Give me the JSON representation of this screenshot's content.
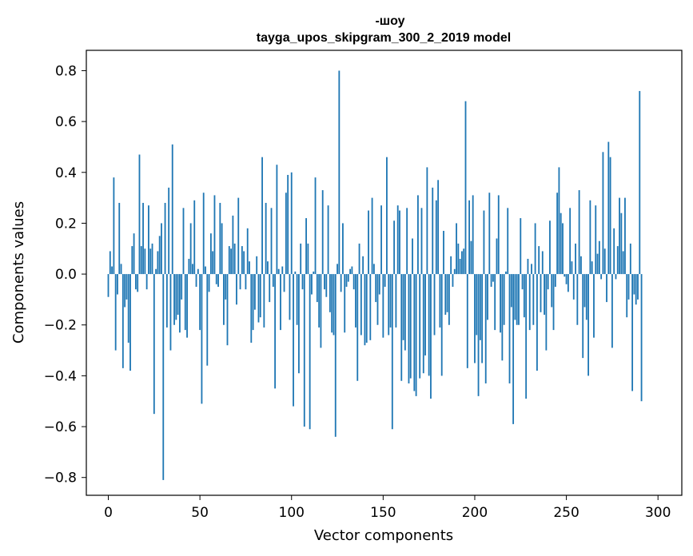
{
  "chart_data": {
    "type": "bar",
    "title": "-шоу",
    "subtitle": "tayga_upos_skipgram_300_2_2019 model",
    "xlabel": "Vector components",
    "ylabel": "Components values",
    "xlim": [
      -12,
      313
    ],
    "ylim": [
      -0.87,
      0.88
    ],
    "xticks": [
      0,
      50,
      100,
      150,
      200,
      250,
      300
    ],
    "xtick_labels": [
      "0",
      "50",
      "100",
      "150",
      "200",
      "250",
      "300"
    ],
    "yticks": [
      -0.8,
      -0.6,
      -0.4,
      -0.2,
      0.0,
      0.2,
      0.4,
      0.6,
      0.8
    ],
    "ytick_labels": [
      "−0.8",
      "−0.6",
      "−0.4",
      "−0.2",
      "0.0",
      "0.2",
      "0.4",
      "0.6",
      "0.8"
    ],
    "bar_color": "#1f77b4",
    "grid": false,
    "values": [
      -0.09,
      0.09,
      0.03,
      0.38,
      -0.3,
      -0.08,
      0.28,
      0.04,
      -0.37,
      -0.13,
      -0.1,
      -0.27,
      -0.38,
      0.11,
      0.16,
      -0.06,
      -0.07,
      0.47,
      0.11,
      0.28,
      0.1,
      -0.06,
      0.27,
      0.1,
      0.12,
      -0.55,
      0.02,
      0.09,
      0.15,
      0.2,
      -0.81,
      0.28,
      -0.21,
      0.34,
      -0.3,
      0.51,
      -0.2,
      -0.18,
      -0.16,
      -0.23,
      -0.1,
      0.26,
      -0.22,
      -0.25,
      0.06,
      0.2,
      0.04,
      0.29,
      -0.05,
      0.02,
      -0.22,
      -0.51,
      0.32,
      0.03,
      -0.36,
      -0.07,
      0.16,
      0.09,
      0.31,
      -0.04,
      -0.05,
      0.28,
      0.2,
      -0.2,
      -0.1,
      -0.28,
      0.11,
      0.1,
      0.23,
      0.12,
      -0.12,
      0.3,
      -0.06,
      0.11,
      0.09,
      -0.06,
      0.18,
      0.05,
      -0.27,
      -0.22,
      -0.14,
      0.07,
      -0.19,
      -0.17,
      0.46,
      -0.21,
      0.28,
      0.05,
      -0.11,
      0.26,
      -0.05,
      -0.45,
      0.43,
      0.02,
      -0.22,
      0.03,
      -0.07,
      0.32,
      0.39,
      -0.18,
      0.4,
      -0.52,
      0.01,
      -0.2,
      -0.39,
      0.12,
      -0.06,
      -0.6,
      0.22,
      0.12,
      -0.61,
      -0.08,
      0.01,
      0.38,
      -0.11,
      -0.21,
      -0.29,
      0.33,
      -0.06,
      -0.09,
      0.27,
      -0.15,
      -0.23,
      -0.24,
      -0.64,
      0.04,
      0.8,
      -0.07,
      0.2,
      -0.23,
      -0.05,
      -0.03,
      0.02,
      0.03,
      -0.06,
      -0.21,
      -0.42,
      0.12,
      -0.24,
      0.07,
      -0.28,
      -0.27,
      0.25,
      -0.26,
      0.3,
      0.04,
      -0.11,
      -0.2,
      -0.08,
      0.27,
      -0.25,
      -0.05,
      0.46,
      -0.24,
      -0.21,
      -0.61,
      0.21,
      -0.21,
      0.27,
      0.25,
      -0.42,
      -0.26,
      -0.3,
      0.26,
      -0.43,
      -0.41,
      0.14,
      -0.46,
      -0.48,
      0.31,
      -0.41,
      0.26,
      -0.39,
      -0.32,
      0.42,
      -0.4,
      -0.49,
      0.34,
      -0.24,
      0.29,
      0.37,
      -0.21,
      -0.4,
      0.17,
      -0.16,
      -0.15,
      -0.2,
      0.07,
      -0.05,
      0.02,
      0.2,
      0.12,
      0.06,
      0.09,
      0.1,
      0.68,
      -0.37,
      0.29,
      0.13,
      0.31,
      -0.35,
      -0.24,
      -0.48,
      -0.26,
      -0.35,
      0.25,
      -0.43,
      -0.18,
      0.32,
      -0.05,
      -0.03,
      -0.22,
      0.14,
      0.31,
      -0.23,
      -0.34,
      -0.2,
      0.01,
      0.26,
      -0.43,
      -0.13,
      -0.59,
      -0.18,
      -0.2,
      -0.2,
      0.22,
      -0.06,
      -0.17,
      -0.49,
      0.06,
      -0.22,
      0.04,
      -0.2,
      0.2,
      -0.38,
      0.11,
      -0.15,
      0.09,
      -0.16,
      -0.3,
      -0.06,
      0.21,
      -0.13,
      -0.22,
      -0.05,
      0.32,
      0.42,
      0.24,
      0.2,
      -0.01,
      -0.04,
      -0.07,
      0.26,
      0.05,
      -0.1,
      0.12,
      -0.2,
      0.33,
      0.07,
      -0.33,
      -0.13,
      -0.18,
      -0.4,
      0.29,
      0.05,
      -0.25,
      0.27,
      0.08,
      0.13,
      -0.02,
      0.48,
      0.1,
      -0.11,
      0.52,
      0.46,
      -0.29,
      0.18,
      -0.02,
      0.11,
      0.3,
      0.24,
      0.09,
      0.3,
      -0.17,
      -0.1,
      0.12,
      -0.46,
      -0.08,
      -0.12,
      -0.1,
      0.72,
      -0.5
    ]
  }
}
